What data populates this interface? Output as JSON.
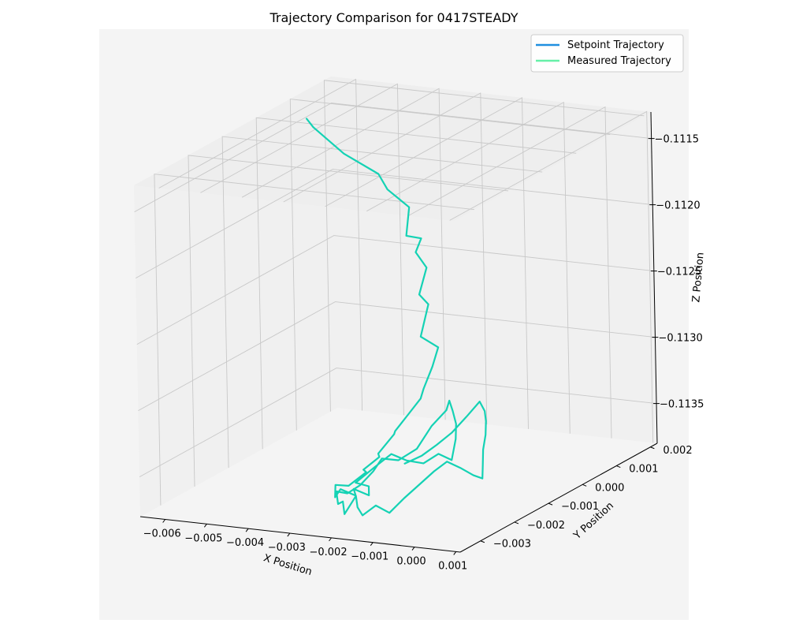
{
  "chart_data": {
    "type": "line",
    "projection": "3d",
    "title": "Trajectory Comparison for 0417STEADY",
    "xlabel": "X Position",
    "ylabel": "Y Position",
    "zlabel": "Z Position",
    "xlim": [
      -0.0066,
      0.0011
    ],
    "ylim": [
      -0.0036,
      0.0022
    ],
    "zlim": [
      -0.1138,
      -0.1113
    ],
    "zaxis_inverted": true,
    "xticks": [
      -0.006,
      -0.005,
      -0.004,
      -0.003,
      -0.002,
      -0.001,
      0.0,
      0.001
    ],
    "xtick_labels": [
      "−0.006",
      "−0.005",
      "−0.004",
      "−0.003",
      "−0.002",
      "−0.001",
      "0.000",
      "0.001"
    ],
    "yticks": [
      -0.003,
      -0.002,
      -0.001,
      0.0,
      0.001,
      0.002
    ],
    "ytick_labels": [
      "−0.003",
      "−0.002",
      "−0.001",
      "0.000",
      "0.001",
      "0.002"
    ],
    "zticks": [
      -0.1115,
      -0.112,
      -0.1125,
      -0.113,
      -0.1135
    ],
    "ztick_labels": [
      "−0.1115",
      "−0.1120",
      "−0.1125",
      "−0.1130",
      "−0.1135"
    ],
    "grid": true,
    "legend_position": "top-right",
    "series": [
      {
        "name": "Setpoint Trajectory",
        "color": "#1f8fe0",
        "x": [],
        "y": [],
        "z": []
      },
      {
        "name": "Measured Trajectory",
        "color": "#66f0a8",
        "x": [
          -0.0058,
          -0.0056,
          -0.005,
          -0.0043,
          -0.0038,
          -0.00345,
          -0.0032,
          -0.00305,
          -0.0029,
          -0.00285,
          -0.00275,
          -0.0027,
          -0.00265,
          -0.0024,
          -0.0023,
          -0.0024,
          -0.00235,
          -0.0025,
          -0.00265,
          -0.0028,
          -0.0029,
          -0.003,
          -0.0031,
          -0.0032,
          -0.0033,
          -0.00345,
          -0.0033,
          -0.003,
          -0.0028,
          -0.0026,
          -0.0024,
          -0.00215,
          -0.0023,
          -0.002,
          -0.0018,
          -0.0016,
          -0.0014,
          -0.0012,
          -0.00105,
          -0.00115,
          -0.0013,
          -0.0015,
          -0.0017,
          -0.0019,
          -0.0021,
          -0.0023,
          -0.0025,
          -0.00265,
          -0.0027,
          -0.00285,
          -0.003,
          -0.0031,
          -0.0029,
          -0.0027,
          -0.0025,
          -0.0023,
          -0.0021,
          -0.0019,
          -0.0017,
          -0.0015,
          -0.0013,
          -0.0011,
          -0.0009,
          -0.00075,
          -0.0006,
          -0.00045,
          -0.0004,
          -0.00055,
          -0.0007,
          -0.0008,
          -0.00095,
          -0.0011,
          -0.0013,
          -0.0015,
          -0.0017,
          -0.0019,
          -0.0021,
          -0.00235
        ],
        "y": [
          0.0005,
          0.00045,
          0.0006,
          0.00075,
          0.0004,
          0.0006,
          0.0002,
          0.00045,
          0.0001,
          0.00035,
          0.0,
          0.0002,
          -0.0001,
          0.0001,
          -0.0002,
          -0.00035,
          -0.0005,
          -0.0007,
          -0.0009,
          -0.00075,
          -0.0011,
          -0.00095,
          -0.0013,
          -0.0011,
          -0.0015,
          -0.0017,
          -0.0019,
          -0.0021,
          -0.0019,
          -0.0022,
          -0.002,
          -0.0023,
          -0.0025,
          -0.0023,
          -0.00205,
          -0.00185,
          -0.0016,
          -0.0014,
          -0.0012,
          -0.00095,
          -0.00075,
          -0.0006,
          -0.00045,
          -0.0003,
          -0.0005,
          -0.0007,
          -0.001,
          -0.0013,
          -0.0015,
          -0.0017,
          -0.0019,
          -0.0021,
          -0.0023,
          -0.0024,
          -0.0026,
          -0.0025,
          -0.0027,
          -0.0028,
          -0.00265,
          -0.0025,
          -0.0023,
          -0.0021,
          -0.0019,
          -0.0017,
          -0.0015,
          -0.0013,
          -0.0011,
          -0.0009,
          -0.0007,
          -0.0005,
          -0.0003,
          -0.00015,
          -5e-05,
          -0.0002,
          -0.0004,
          -0.0006,
          -0.0008,
          -0.001
        ],
        "z": [
          -0.11135,
          -0.1114,
          -0.1116,
          -0.11175,
          -0.1118,
          -0.11195,
          -0.1121,
          -0.11215,
          -0.1122,
          -0.11235,
          -0.1125,
          -0.1126,
          -0.1128,
          -0.1129,
          -0.113,
          -0.11315,
          -0.1132,
          -0.1133,
          -0.1134,
          -0.11345,
          -0.11355,
          -0.1136,
          -0.11365,
          -0.1137,
          -0.11375,
          -0.11372,
          -0.11378,
          -0.11368,
          -0.11375,
          -0.11365,
          -0.11372,
          -0.1136,
          -0.11355,
          -0.11345,
          -0.11338,
          -0.11345,
          -0.1135,
          -0.11345,
          -0.11352,
          -0.1134,
          -0.11332,
          -0.11325,
          -0.1132,
          -0.1133,
          -0.1134,
          -0.11355,
          -0.1136,
          -0.11355,
          -0.11362,
          -0.1137,
          -0.11374,
          -0.1137,
          -0.11376,
          -0.11372,
          -0.11378,
          -0.11365,
          -0.1137,
          -0.11374,
          -0.11368,
          -0.11375,
          -0.11366,
          -0.11358,
          -0.1135,
          -0.11345,
          -0.11352,
          -0.1136,
          -0.11365,
          -0.11358,
          -0.1135,
          -0.11342,
          -0.11335,
          -0.1133,
          -0.11325,
          -0.11335,
          -0.11345,
          -0.11352,
          -0.11358,
          -0.11362
        ]
      }
    ],
    "background_color": "#f4f4f4",
    "gridline_color": "#c8c8c8"
  }
}
